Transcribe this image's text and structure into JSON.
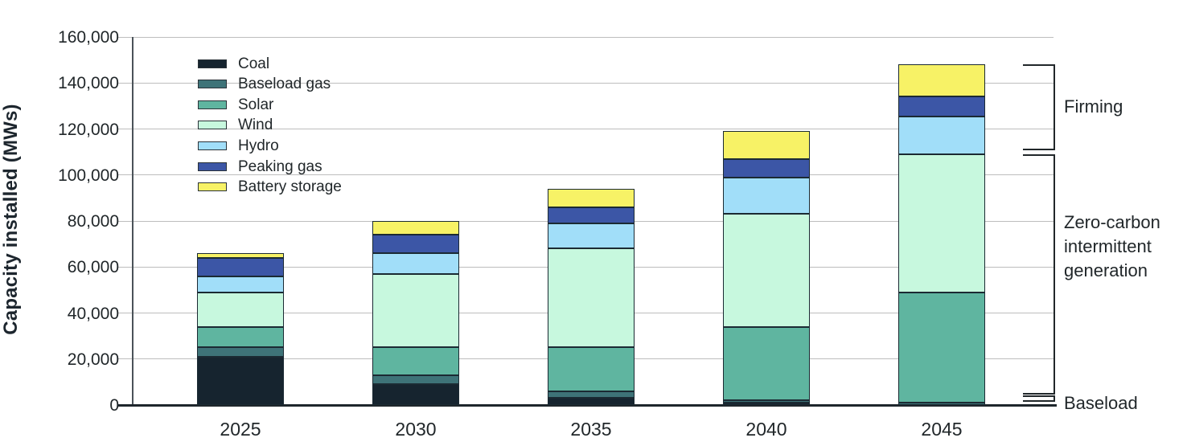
{
  "chart_data": {
    "type": "bar",
    "stacked": true,
    "title": "",
    "xlabel": "",
    "ylabel": "Capacity installed (MWs)",
    "categories": [
      "2025",
      "2030",
      "2035",
      "2040",
      "2045"
    ],
    "series": [
      {
        "name": "Coal",
        "color": "#16242f",
        "values": [
          21000,
          9000,
          3000,
          1000,
          0
        ]
      },
      {
        "name": "Baseload gas",
        "color": "#3e7378",
        "values": [
          4000,
          4000,
          3000,
          1000,
          1000
        ]
      },
      {
        "name": "Solar",
        "color": "#5fb5a0",
        "values": [
          9000,
          12000,
          19000,
          32000,
          48000
        ]
      },
      {
        "name": "Wind",
        "color": "#c7f8de",
        "values": [
          15000,
          32000,
          43000,
          49000,
          60000
        ]
      },
      {
        "name": "Hydro",
        "color": "#a1def9",
        "values": [
          7000,
          9000,
          11000,
          16000,
          16500
        ]
      },
      {
        "name": "Peaking gas",
        "color": "#3c56a6",
        "values": [
          8000,
          8000,
          7000,
          8000,
          8500
        ]
      },
      {
        "name": "Battery storage",
        "color": "#f7f266",
        "values": [
          2000,
          6000,
          8000,
          12000,
          14000
        ]
      }
    ],
    "totals": [
      66000,
      80000,
      94000,
      119000,
      148000
    ],
    "ylim": [
      0,
      160000
    ],
    "ytick_step": 20000,
    "ytick_labels": [
      "0",
      "20,000",
      "40,000",
      "60,000",
      "80,000",
      "100,000",
      "120,000",
      "140,000",
      "160,000"
    ],
    "grid": true,
    "legend_position": "upper-left-inside",
    "legend_entries": [
      "Coal",
      "Baseload gas",
      "Solar",
      "Wind",
      "Hydro",
      "Peaking gas",
      "Battery storage"
    ]
  },
  "annotations": {
    "firming": {
      "label": "Firming",
      "covers": [
        "Hydro",
        "Peaking gas",
        "Battery storage"
      ]
    },
    "zero_carbon": {
      "label_lines": [
        "Zero-carbon",
        "intermittent",
        "generation"
      ],
      "covers": [
        "Solar",
        "Wind"
      ]
    },
    "baseload": {
      "label": "Baseload",
      "covers": [
        "Coal",
        "Baseload gas"
      ]
    }
  },
  "colors": {
    "text": "#21272a",
    "gridline": "#bdbdbd",
    "axis": "#1e262c"
  }
}
